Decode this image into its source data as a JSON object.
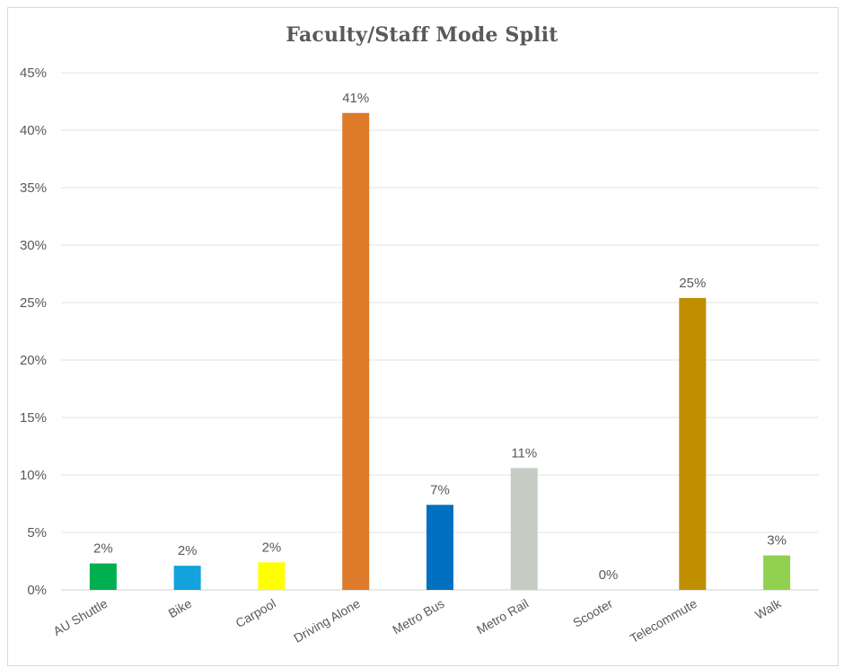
{
  "chart_data": {
    "type": "bar",
    "title": "Faculty/Staff Mode Split",
    "xlabel": "",
    "ylabel": "",
    "ylim": [
      0,
      45
    ],
    "yticks": [
      "0%",
      "5%",
      "10%",
      "15%",
      "20%",
      "25%",
      "30%",
      "35%",
      "40%",
      "45%"
    ],
    "grid": true,
    "legend": "none",
    "categories": [
      "AU Shuttle",
      "Bike",
      "Carpool",
      "Driving Alone",
      "Metro Bus",
      "Metro Rail",
      "Scooter",
      "Telecommute",
      "Walk"
    ],
    "values": [
      2.3,
      2.1,
      2.4,
      41.5,
      7.4,
      10.6,
      0,
      25.4,
      3.0
    ],
    "data_labels": [
      "2%",
      "2%",
      "2%",
      "41%",
      "7%",
      "11%",
      "0%",
      "25%",
      "3%"
    ],
    "colors": [
      "#00b050",
      "#13a3dd",
      "#ffff00",
      "#dd7b2a",
      "#0070c0",
      "#c6cbc4",
      "#a6a6a6",
      "#bf8f00",
      "#92d050"
    ]
  }
}
